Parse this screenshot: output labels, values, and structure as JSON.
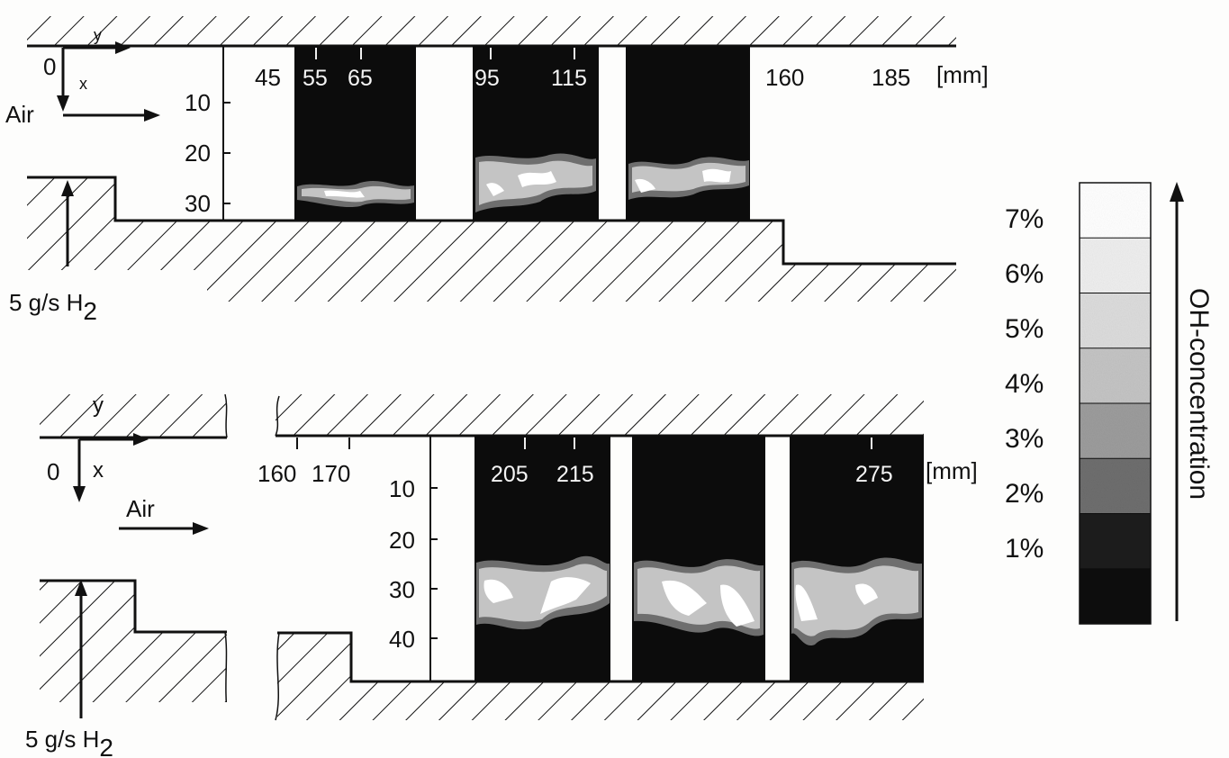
{
  "units": "[mm]",
  "top": {
    "origin": "0",
    "axis_y": "y",
    "axis_x": "x",
    "air": "Air",
    "h2": "5 g/s H",
    "h2_sub": "2",
    "ticks_y": [
      "45",
      "55",
      "65",
      "95",
      "115",
      "160",
      "185"
    ],
    "ticks_x": [
      "10",
      "20",
      "30"
    ]
  },
  "bottom": {
    "origin": "0",
    "axis_y": "y",
    "axis_x": "x",
    "air": "Air",
    "h2": "5 g/s H",
    "h2_sub": "2",
    "ticks_y": [
      "160",
      "170",
      "205",
      "215",
      "275"
    ],
    "ticks_x": [
      "10",
      "20",
      "30",
      "40"
    ]
  },
  "legend": {
    "title": "OH-concentration",
    "levels": [
      "7%",
      "6%",
      "5%",
      "4%",
      "3%",
      "2%",
      "1%"
    ],
    "colors": [
      "#ffffff",
      "#eeeeee",
      "#dcdcdc",
      "#c4c4c4",
      "#9c9c9c",
      "#6e6e6e",
      "#1e1e1e",
      "#0c0c0c"
    ]
  }
}
